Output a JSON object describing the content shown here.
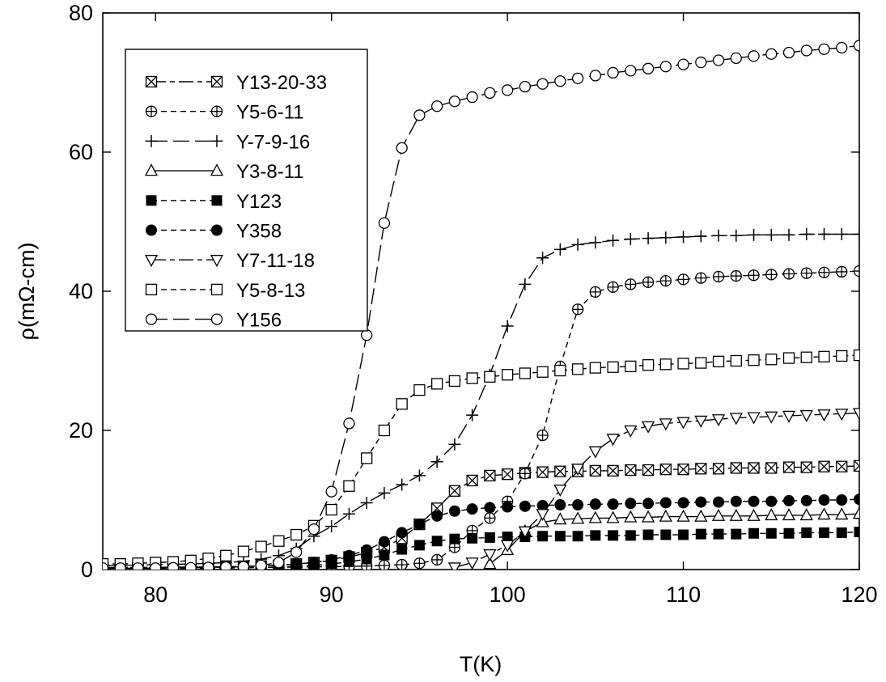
{
  "chart_data": {
    "type": "line",
    "title": "",
    "xlabel": "T(K)",
    "ylabel": "ρ(mΩ-cm)",
    "xlim": [
      77,
      120
    ],
    "ylim": [
      0,
      80
    ],
    "xticks": [
      80,
      90,
      100,
      110,
      120
    ],
    "yticks": [
      0,
      20,
      40,
      60,
      80
    ],
    "grid": false,
    "legend_position": "upper-left",
    "series": [
      {
        "name": "Y13-20-33",
        "marker": "square-x",
        "line": "long-short-dash",
        "x": [
          77,
          78,
          79,
          80,
          81,
          82,
          83,
          84,
          85,
          86,
          87,
          88,
          89,
          90,
          91,
          92,
          93,
          94,
          95,
          96,
          97,
          98,
          99,
          100,
          101,
          102,
          103,
          104,
          105,
          106,
          107,
          108,
          109,
          110,
          111,
          112,
          113,
          114,
          115,
          116,
          117,
          118,
          119,
          120
        ],
        "y": [
          0.3,
          0.3,
          0.3,
          0.3,
          0.35,
          0.35,
          0.4,
          0.4,
          0.45,
          0.5,
          0.6,
          0.8,
          1.0,
          1.3,
          1.8,
          2.4,
          3.2,
          4.5,
          6.5,
          8.8,
          11.3,
          12.8,
          13.5,
          13.7,
          13.9,
          14.0,
          14.1,
          14.1,
          14.2,
          14.2,
          14.3,
          14.3,
          14.4,
          14.4,
          14.5,
          14.5,
          14.6,
          14.6,
          14.6,
          14.7,
          14.7,
          14.8,
          14.8,
          14.9
        ]
      },
      {
        "name": "Y5-6-11",
        "marker": "circle-plus",
        "line": "dashed",
        "x": [
          77,
          78,
          79,
          80,
          81,
          82,
          83,
          84,
          85,
          86,
          87,
          88,
          89,
          90,
          91,
          92,
          93,
          94,
          95,
          96,
          97,
          98,
          99,
          100,
          101,
          102,
          103,
          104,
          105,
          106,
          107,
          108,
          109,
          110,
          111,
          112,
          113,
          114,
          115,
          116,
          117,
          118,
          119,
          120
        ],
        "y": [
          0.3,
          0.3,
          0.3,
          0.3,
          0.3,
          0.3,
          0.3,
          0.3,
          0.3,
          0.3,
          0.35,
          0.35,
          0.4,
          0.4,
          0.45,
          0.5,
          0.6,
          0.7,
          0.9,
          1.4,
          3.2,
          5.6,
          7.4,
          9.8,
          13.8,
          19.3,
          29.2,
          37.4,
          39.9,
          40.6,
          41.0,
          41.3,
          41.5,
          41.7,
          41.9,
          42.1,
          42.2,
          42.3,
          42.4,
          42.5,
          42.6,
          42.7,
          42.8,
          42.9
        ]
      },
      {
        "name": "Y-7-9-16",
        "marker": "plus",
        "line": "long-dash",
        "x": [
          77,
          78,
          79,
          80,
          81,
          82,
          83,
          84,
          85,
          86,
          87,
          88,
          89,
          90,
          91,
          92,
          93,
          94,
          95,
          96,
          97,
          98,
          99,
          100,
          101,
          102,
          103,
          104,
          105,
          106,
          107,
          108,
          109,
          110,
          111,
          112,
          113,
          114,
          115,
          116,
          117,
          118,
          119,
          120
        ],
        "y": [
          0.6,
          0.6,
          0.65,
          0.7,
          0.75,
          0.8,
          0.9,
          1.0,
          1.2,
          1.5,
          2.0,
          3.0,
          4.8,
          6.2,
          8.0,
          9.6,
          11.0,
          12.2,
          13.5,
          15.5,
          18.0,
          22.2,
          28.0,
          35.0,
          41.0,
          44.8,
          46.0,
          46.7,
          47.0,
          47.3,
          47.5,
          47.6,
          47.7,
          47.8,
          47.9,
          48.0,
          48.0,
          48.1,
          48.1,
          48.1,
          48.2,
          48.2,
          48.2,
          48.2
        ]
      },
      {
        "name": "Y3-8-11",
        "marker": "triangle-up",
        "line": "solid",
        "x": [
          99,
          100,
          101,
          102,
          103,
          104,
          105,
          106,
          107,
          108,
          109,
          110,
          111,
          112,
          113,
          114,
          115,
          116,
          117,
          118,
          119,
          120
        ],
        "y": [
          0.8,
          2.8,
          5.5,
          6.8,
          7.2,
          7.3,
          7.4,
          7.4,
          7.5,
          7.5,
          7.6,
          7.6,
          7.6,
          7.7,
          7.7,
          7.7,
          7.8,
          7.8,
          7.8,
          7.9,
          7.9,
          8.0
        ]
      },
      {
        "name": "Y123",
        "marker": "filled-square",
        "line": "dashed",
        "x": [
          77,
          78,
          79,
          80,
          81,
          82,
          83,
          84,
          85,
          86,
          87,
          88,
          89,
          90,
          91,
          92,
          93,
          94,
          95,
          96,
          97,
          98,
          99,
          100,
          101,
          102,
          103,
          104,
          105,
          106,
          107,
          108,
          109,
          110,
          111,
          112,
          113,
          114,
          115,
          116,
          117,
          118,
          119,
          120
        ],
        "y": [
          0.2,
          0.2,
          0.2,
          0.2,
          0.2,
          0.2,
          0.2,
          0.2,
          0.25,
          0.3,
          0.35,
          0.45,
          0.6,
          0.8,
          1.1,
          1.5,
          2.1,
          2.9,
          3.5,
          4.1,
          4.4,
          4.5,
          4.6,
          4.7,
          4.7,
          4.8,
          4.8,
          4.8,
          4.9,
          4.9,
          4.9,
          5.0,
          5.0,
          5.0,
          5.1,
          5.1,
          5.1,
          5.2,
          5.2,
          5.2,
          5.3,
          5.3,
          5.3,
          5.4
        ]
      },
      {
        "name": "Y358",
        "marker": "filled-circle",
        "line": "dashed",
        "x": [
          77,
          78,
          79,
          80,
          81,
          82,
          83,
          84,
          85,
          86,
          87,
          88,
          89,
          90,
          91,
          92,
          93,
          94,
          95,
          96,
          97,
          98,
          99,
          100,
          101,
          102,
          103,
          104,
          105,
          106,
          107,
          108,
          109,
          110,
          111,
          112,
          113,
          114,
          115,
          116,
          117,
          118,
          119,
          120
        ],
        "y": [
          0.3,
          0.3,
          0.3,
          0.3,
          0.35,
          0.35,
          0.4,
          0.4,
          0.45,
          0.5,
          0.6,
          0.8,
          1.0,
          1.4,
          2.0,
          2.8,
          4.0,
          5.3,
          6.5,
          7.7,
          8.4,
          8.7,
          8.9,
          9.0,
          9.1,
          9.2,
          9.3,
          9.3,
          9.4,
          9.4,
          9.5,
          9.5,
          9.6,
          9.6,
          9.7,
          9.7,
          9.8,
          9.8,
          9.8,
          9.9,
          9.9,
          10.0,
          10.0,
          10.1
        ]
      },
      {
        "name": "Y7-11-18",
        "marker": "triangle-down",
        "line": "long-short-dash",
        "x": [
          97,
          98,
          99,
          100,
          101,
          102,
          103,
          104,
          105,
          106,
          107,
          108,
          109,
          110,
          111,
          112,
          113,
          114,
          115,
          116,
          117,
          118,
          119,
          120
        ],
        "y": [
          0.3,
          1.0,
          2.2,
          3.5,
          5.5,
          8.0,
          11.5,
          14.5,
          17.0,
          18.8,
          20.0,
          20.6,
          21.0,
          21.2,
          21.4,
          21.6,
          21.8,
          21.9,
          22.0,
          22.1,
          22.2,
          22.3,
          22.4,
          22.5
        ]
      },
      {
        "name": "Y5-8-13",
        "marker": "square",
        "line": "dashed",
        "x": [
          77,
          78,
          79,
          80,
          81,
          82,
          83,
          84,
          85,
          86,
          87,
          88,
          89,
          90,
          91,
          92,
          93,
          94,
          95,
          96,
          97,
          98,
          99,
          100,
          101,
          102,
          103,
          104,
          105,
          106,
          107,
          108,
          109,
          110,
          111,
          112,
          113,
          114,
          115,
          116,
          117,
          118,
          119,
          120
        ],
        "y": [
          0.8,
          0.8,
          0.9,
          1.0,
          1.1,
          1.3,
          1.6,
          2.0,
          2.6,
          3.3,
          4.1,
          5.0,
          6.3,
          8.6,
          12.0,
          16.0,
          20.0,
          23.8,
          25.8,
          26.7,
          27.1,
          27.5,
          27.7,
          28.0,
          28.2,
          28.4,
          28.6,
          28.8,
          29.0,
          29.1,
          29.2,
          29.4,
          29.5,
          29.6,
          29.7,
          29.9,
          30.0,
          30.1,
          30.2,
          30.4,
          30.5,
          30.6,
          30.7,
          30.8
        ]
      },
      {
        "name": "Y156",
        "marker": "circle",
        "line": "long-dash",
        "x": [
          77,
          78,
          79,
          80,
          81,
          82,
          83,
          84,
          85,
          86,
          87,
          88,
          89,
          90,
          91,
          92,
          93,
          94,
          95,
          96,
          97,
          98,
          99,
          100,
          101,
          102,
          103,
          104,
          105,
          106,
          107,
          108,
          109,
          110,
          111,
          112,
          113,
          114,
          115,
          116,
          117,
          118,
          119,
          120
        ],
        "y": [
          0.2,
          0.2,
          0.2,
          0.2,
          0.25,
          0.25,
          0.3,
          0.35,
          0.4,
          0.6,
          1.0,
          2.5,
          5.8,
          11.2,
          21.0,
          33.7,
          49.8,
          60.6,
          65.3,
          66.6,
          67.3,
          67.9,
          68.5,
          68.9,
          69.4,
          69.8,
          70.2,
          70.6,
          71.0,
          71.4,
          71.7,
          72.0,
          72.3,
          72.6,
          72.9,
          73.2,
          73.5,
          73.8,
          74.1,
          74.3,
          74.6,
          74.8,
          75.0,
          75.3
        ]
      }
    ]
  }
}
